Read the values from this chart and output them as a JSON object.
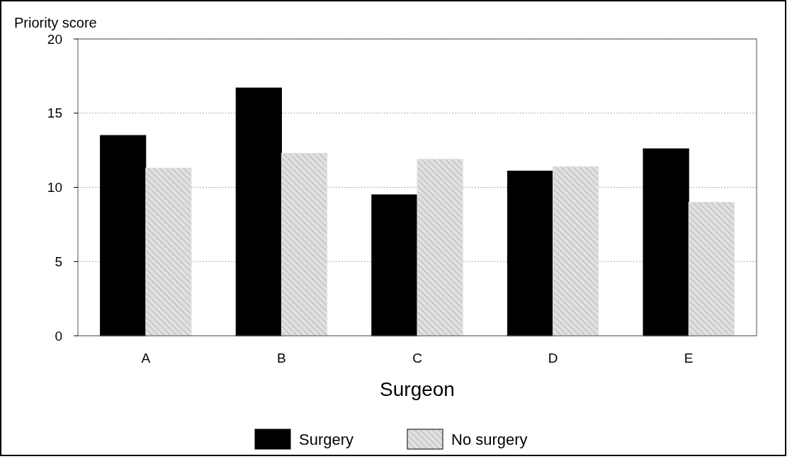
{
  "chart_data": {
    "type": "bar",
    "ylabel": "Priority score",
    "xlabel": "Surgeon",
    "categories": [
      "A",
      "B",
      "C",
      "D",
      "E"
    ],
    "series": [
      {
        "name": "Surgery",
        "color": "#000000",
        "values": [
          13.5,
          16.7,
          9.5,
          11.1,
          12.6
        ]
      },
      {
        "name": "No surgery",
        "color": "#e0e0e0",
        "values": [
          11.3,
          12.3,
          11.9,
          11.4,
          9.0
        ]
      }
    ],
    "ylim": [
      0,
      20
    ],
    "yticks": [
      0,
      5,
      10,
      15,
      20
    ],
    "grid": "y",
    "legend": "bottom"
  }
}
